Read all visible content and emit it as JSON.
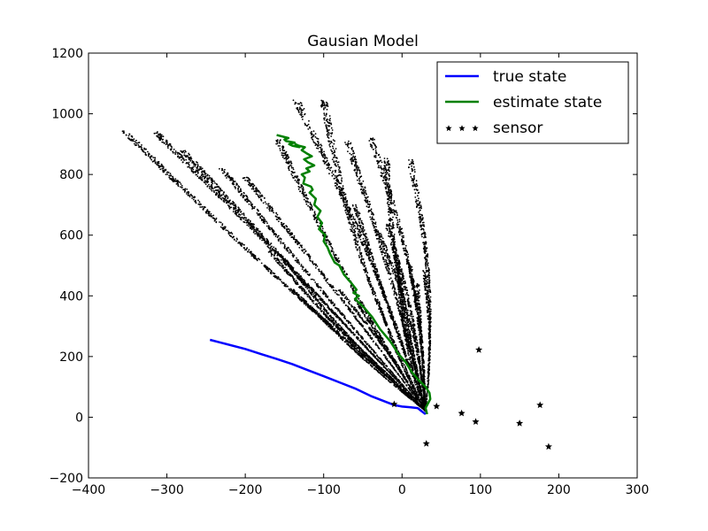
{
  "chart_data": {
    "type": "line",
    "title": "Gausian Model",
    "xlabel": "",
    "ylabel": "",
    "xlim": [
      -400,
      300
    ],
    "ylim": [
      -200,
      1200
    ],
    "xticks": [
      -400,
      -300,
      -200,
      -100,
      0,
      100,
      200,
      300
    ],
    "yticks": [
      -200,
      0,
      200,
      400,
      600,
      800,
      1000,
      1200
    ],
    "xtick_labels": [
      "−400",
      "−300",
      "−200",
      "−100",
      "0",
      "100",
      "200",
      "300"
    ],
    "ytick_labels": [
      "−200",
      "0",
      "200",
      "400",
      "600",
      "800",
      "1000",
      "1200"
    ],
    "grid": false,
    "legend_position": "top-right",
    "series": [
      {
        "name": "true state",
        "style": "line",
        "color": "#0000ff",
        "x": [
          -245,
          -230,
          -200,
          -180,
          -160,
          -140,
          -120,
          -100,
          -80,
          -60,
          -40,
          -20,
          -10,
          0,
          10,
          20,
          25,
          30
        ],
        "y": [
          255,
          245,
          225,
          208,
          192,
          175,
          155,
          135,
          115,
          95,
          70,
          50,
          40,
          35,
          33,
          30,
          20,
          10
        ]
      },
      {
        "name": "estimate state",
        "style": "line",
        "color": "#008000",
        "x": [
          32,
          30,
          36,
          35,
          30,
          22,
          12,
          5,
          -5,
          -15,
          -28,
          -38,
          -48,
          -56,
          -60,
          -55,
          -62,
          -58,
          -64,
          -74,
          -80,
          -86,
          -92,
          -95,
          -100,
          -98,
          -106,
          -102,
          -108,
          -104,
          -112,
          -110,
          -118,
          -114,
          -116,
          -126,
          -124,
          -128,
          -118,
          -122,
          -112,
          -120,
          -125,
          -115,
          -122,
          -128,
          -124,
          -132,
          -136,
          -131,
          -140,
          -144,
          -137,
          -148,
          -150,
          -145,
          -160
        ],
        "y": [
          10,
          30,
          60,
          80,
          100,
          120,
          150,
          180,
          210,
          250,
          290,
          330,
          360,
          380,
          390,
          400,
          410,
          420,
          440,
          470,
          500,
          510,
          540,
          560,
          580,
          600,
          620,
          640,
          660,
          680,
          700,
          720,
          740,
          750,
          760,
          770,
          790,
          800,
          810,
          820,
          830,
          840,
          850,
          860,
          870,
          880,
          890,
          895,
          900,
          890,
          895,
          900,
          905,
          910,
          915,
          920,
          930
        ]
      },
      {
        "name": "sensor",
        "style": "marker",
        "marker": "*",
        "color": "#000000",
        "x": [
          98,
          44,
          76,
          94,
          150,
          176,
          187,
          31,
          -10
        ],
        "y": [
          222,
          36,
          13,
          -15,
          -20,
          40,
          -97,
          -87,
          43
        ]
      }
    ],
    "particle_cloud": {
      "description_visible": false,
      "color": "#000000",
      "origin": [
        30,
        20
      ],
      "branch_endpoints": [
        [
          -355,
          945
        ],
        [
          -315,
          940
        ],
        [
          -280,
          880
        ],
        [
          -230,
          820
        ],
        [
          -200,
          790
        ],
        [
          -160,
          920
        ],
        [
          -135,
          1045
        ],
        [
          -100,
          1045
        ],
        [
          -70,
          910
        ],
        [
          -40,
          920
        ],
        [
          -20,
          860
        ],
        [
          10,
          850
        ],
        [
          -150,
          520
        ],
        [
          -170,
          550
        ],
        [
          -140,
          420
        ],
        [
          -120,
          370
        ],
        [
          -100,
          340
        ],
        [
          -60,
          700
        ],
        [
          -30,
          610
        ],
        [
          -20,
          640
        ],
        [
          -10,
          560
        ],
        [
          -5,
          520
        ],
        [
          10,
          500
        ],
        [
          20,
          440
        ],
        [
          28,
          485
        ],
        [
          -80,
          420
        ],
        [
          -60,
          390
        ],
        [
          -30,
          380
        ],
        [
          0,
          320
        ]
      ]
    }
  }
}
